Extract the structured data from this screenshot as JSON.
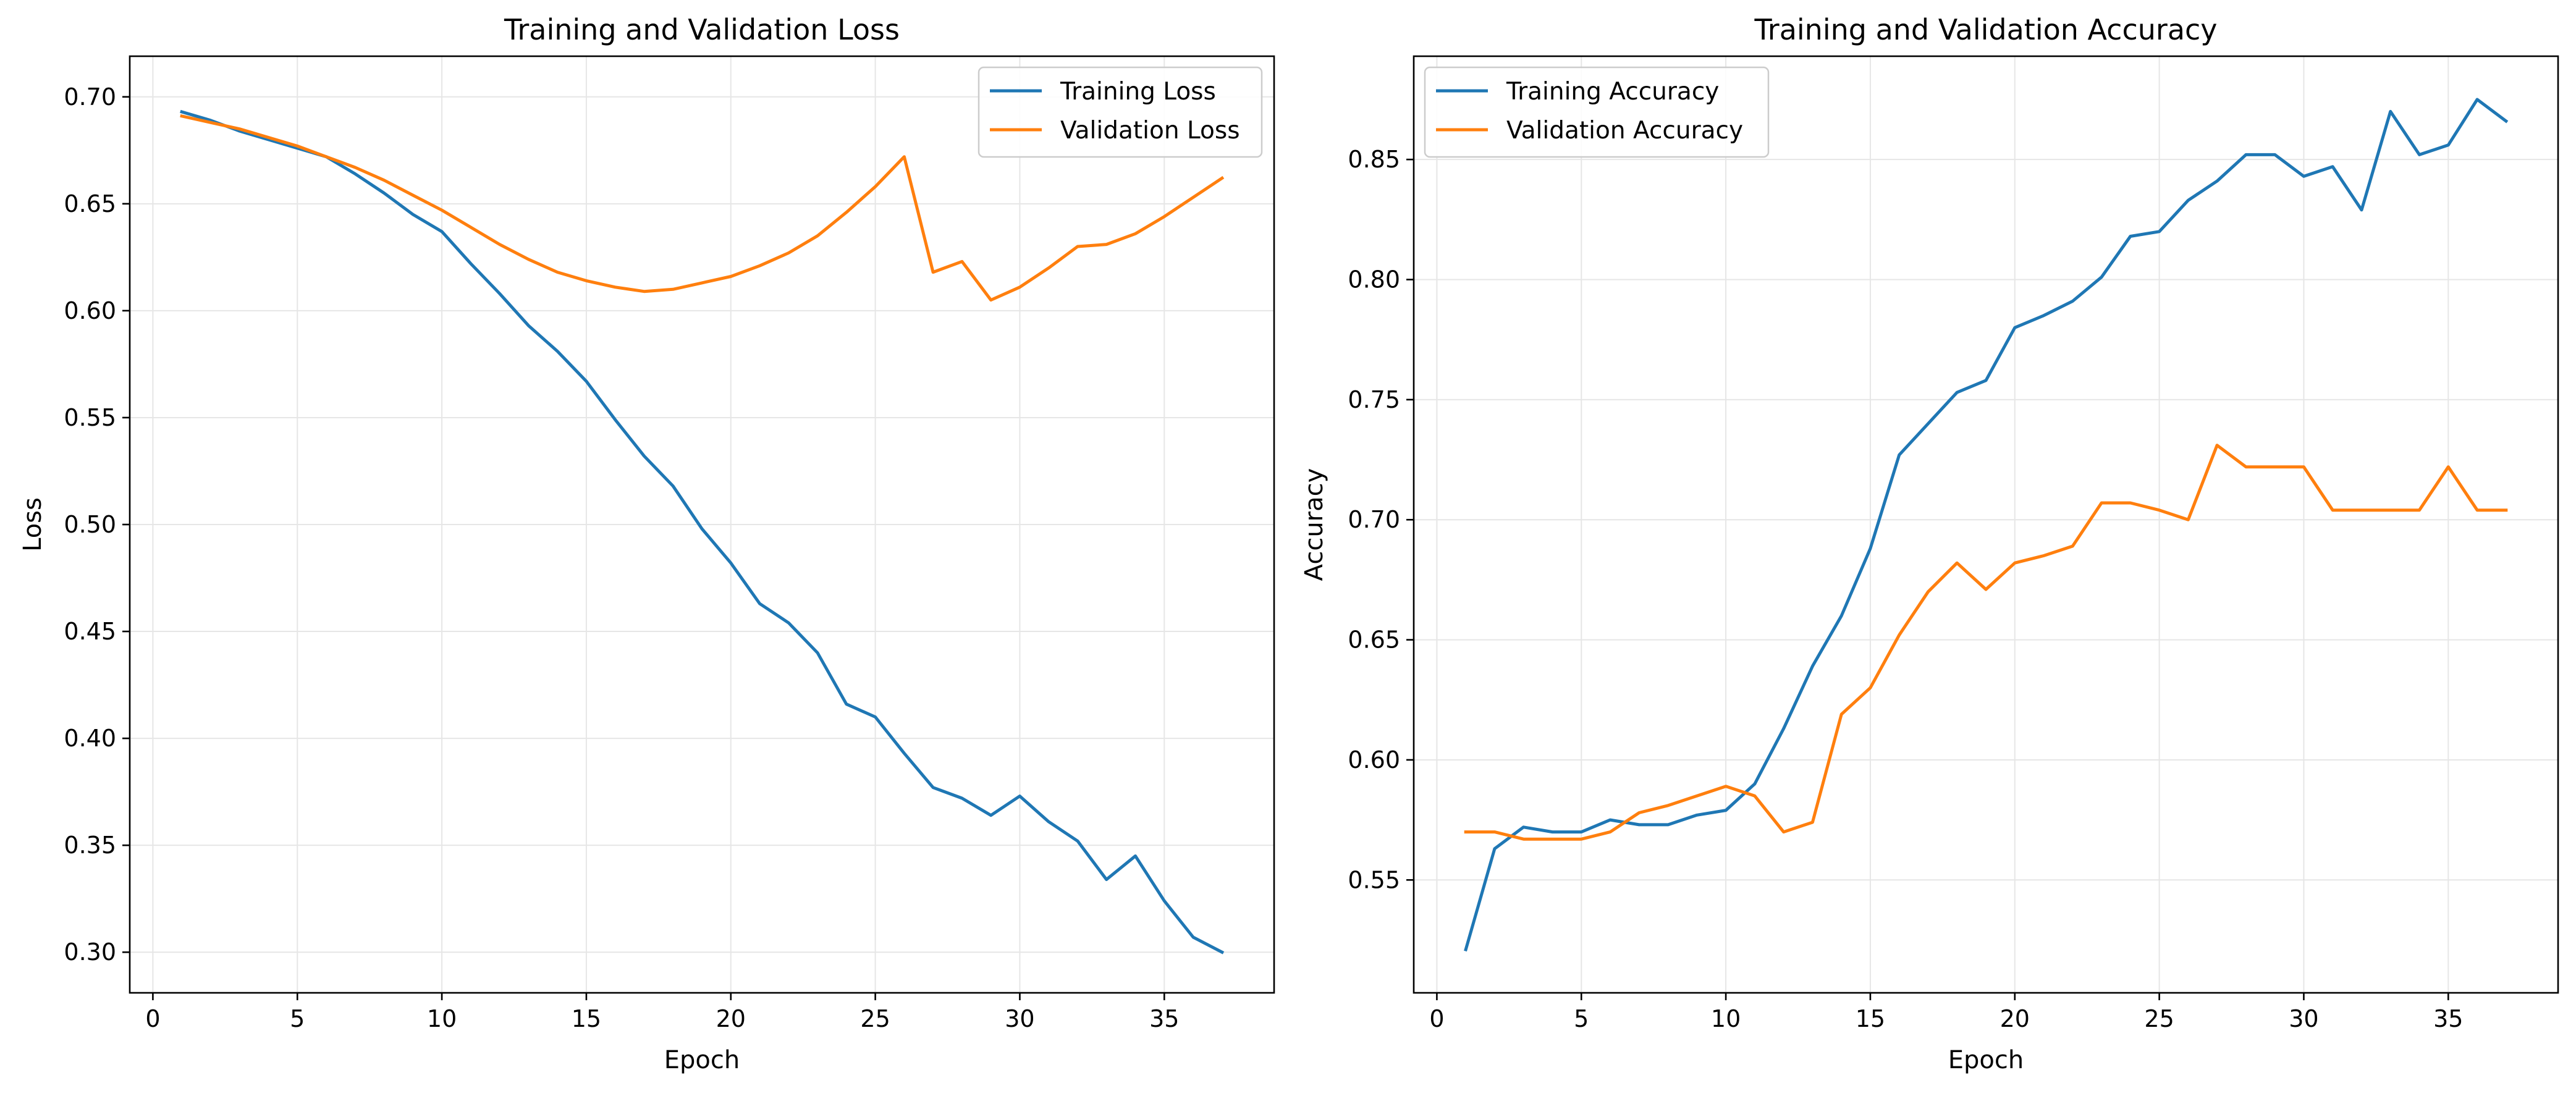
{
  "colors": {
    "training": "#1f77b4",
    "validation": "#ff7f0e",
    "grid": "#e6e6e6",
    "frame": "#000000"
  },
  "chart_data": [
    {
      "type": "line",
      "title": "Training and Validation Loss",
      "xlabel": "Epoch",
      "ylabel": "Loss",
      "xlim": [
        -0.8,
        38.8
      ],
      "ylim": [
        0.281,
        0.719
      ],
      "xticks": [
        0,
        5,
        10,
        15,
        20,
        25,
        30,
        35
      ],
      "xtick_labels": [
        "0",
        "5",
        "10",
        "15",
        "20",
        "25",
        "30",
        "35"
      ],
      "yticks": [
        0.3,
        0.35,
        0.4,
        0.45,
        0.5,
        0.55,
        0.6,
        0.65,
        0.7
      ],
      "ytick_labels": [
        "0.30",
        "0.35",
        "0.40",
        "0.45",
        "0.50",
        "0.55",
        "0.60",
        "0.65",
        "0.70"
      ],
      "grid": true,
      "legend_position": "top-right",
      "x": [
        1,
        2,
        3,
        4,
        5,
        6,
        7,
        8,
        9,
        10,
        11,
        12,
        13,
        14,
        15,
        16,
        17,
        18,
        19,
        20,
        21,
        22,
        23,
        24,
        25,
        26,
        27,
        28,
        29,
        30,
        31,
        32,
        33,
        34,
        35,
        36,
        37
      ],
      "series": [
        {
          "name": "Training Loss",
          "color": "#1f77b4",
          "values": [
            0.693,
            0.689,
            0.684,
            0.68,
            0.676,
            0.672,
            0.664,
            0.655,
            0.645,
            0.637,
            0.622,
            0.608,
            0.593,
            0.581,
            0.567,
            0.549,
            0.532,
            0.518,
            0.498,
            0.482,
            0.463,
            0.454,
            0.44,
            0.416,
            0.41,
            0.393,
            0.377,
            0.372,
            0.364,
            0.373,
            0.361,
            0.352,
            0.334,
            0.345,
            0.324,
            0.307,
            0.3
          ]
        },
        {
          "name": "Validation Loss",
          "color": "#ff7f0e",
          "values": [
            0.691,
            0.688,
            0.685,
            0.681,
            0.677,
            0.672,
            0.667,
            0.661,
            0.654,
            0.647,
            0.639,
            0.631,
            0.624,
            0.618,
            0.614,
            0.611,
            0.609,
            0.61,
            0.613,
            0.616,
            0.621,
            0.627,
            0.635,
            0.646,
            0.658,
            0.672,
            0.618,
            0.623,
            0.605,
            0.611,
            0.62,
            0.63,
            0.631,
            0.636,
            0.644,
            0.653,
            0.662
          ]
        }
      ]
    },
    {
      "type": "line",
      "title": "Training and Validation Accuracy",
      "xlabel": "Epoch",
      "ylabel": "Accuracy",
      "xlim": [
        -0.8,
        38.8
      ],
      "ylim": [
        0.503,
        0.893
      ],
      "xticks": [
        0,
        5,
        10,
        15,
        20,
        25,
        30,
        35
      ],
      "xtick_labels": [
        "0",
        "5",
        "10",
        "15",
        "20",
        "25",
        "30",
        "35"
      ],
      "yticks": [
        0.55,
        0.6,
        0.65,
        0.7,
        0.75,
        0.8,
        0.85
      ],
      "ytick_labels": [
        "0.55",
        "0.60",
        "0.65",
        "0.70",
        "0.75",
        "0.80",
        "0.85"
      ],
      "grid": true,
      "legend_position": "top-left",
      "x": [
        1,
        2,
        3,
        4,
        5,
        6,
        7,
        8,
        9,
        10,
        11,
        12,
        13,
        14,
        15,
        16,
        17,
        18,
        19,
        20,
        21,
        22,
        23,
        24,
        25,
        26,
        27,
        28,
        29,
        30,
        31,
        32,
        33,
        34,
        35,
        36,
        37
      ],
      "series": [
        {
          "name": "Training Accuracy",
          "color": "#1f77b4",
          "values": [
            0.521,
            0.563,
            0.572,
            0.57,
            0.57,
            0.575,
            0.573,
            0.573,
            0.577,
            0.579,
            0.59,
            0.613,
            0.639,
            0.66,
            0.688,
            0.727,
            0.74,
            0.753,
            0.758,
            0.78,
            0.785,
            0.791,
            0.801,
            0.818,
            0.82,
            0.833,
            0.841,
            0.852,
            0.852,
            0.843,
            0.847,
            0.829,
            0.87,
            0.852,
            0.856,
            0.875,
            0.866
          ]
        },
        {
          "name": "Validation Accuracy",
          "color": "#ff7f0e",
          "values": [
            0.57,
            0.57,
            0.567,
            0.567,
            0.567,
            0.57,
            0.578,
            0.581,
            0.585,
            0.589,
            0.585,
            0.57,
            0.574,
            0.619,
            0.63,
            0.652,
            0.67,
            0.682,
            0.671,
            0.682,
            0.685,
            0.689,
            0.707,
            0.707,
            0.704,
            0.7,
            0.731,
            0.722,
            0.722,
            0.722,
            0.704,
            0.704,
            0.704,
            0.704,
            0.722,
            0.704,
            0.704
          ]
        }
      ]
    }
  ]
}
